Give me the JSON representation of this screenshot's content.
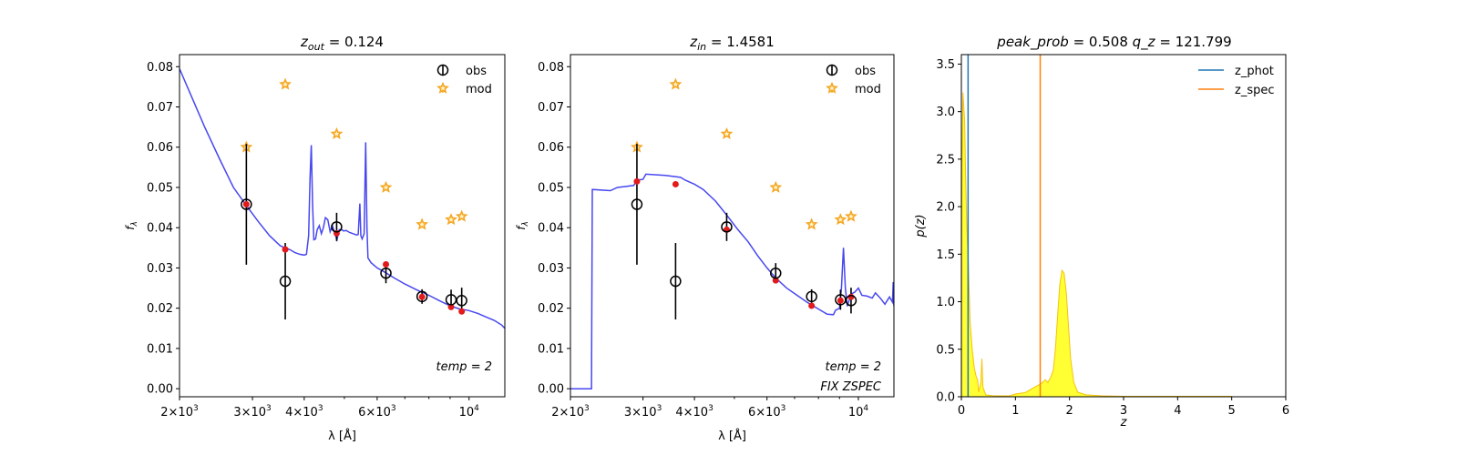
{
  "chart_data": [
    {
      "type": "line",
      "title": "z_out = 0.124",
      "title_parts": {
        "base": "z",
        "sub": "out",
        "rest": " = 0.124"
      },
      "xlabel": "λ [Å]",
      "ylabel": "f_λ",
      "xscale": "log",
      "xlim": [
        2000,
        12200
      ],
      "ylim": [
        -0.002,
        0.083
      ],
      "xticks": [
        {
          "v": 2000,
          "m": "2",
          "e": "3"
        },
        {
          "v": 3000,
          "m": "3",
          "e": "3"
        },
        {
          "v": 4000,
          "m": "4",
          "e": "3"
        },
        {
          "v": 6000,
          "m": "6",
          "e": "3"
        },
        {
          "v": 10000,
          "m": "",
          "e": "4"
        }
      ],
      "yticks": [
        "0.00",
        "0.01",
        "0.02",
        "0.03",
        "0.04",
        "0.05",
        "0.06",
        "0.07",
        "0.08"
      ],
      "legend": [
        "obs",
        "mod"
      ],
      "legend_position": "upper right",
      "annotations": [
        "temp = 2"
      ],
      "series": [
        {
          "name": "model",
          "color": "#3333ee",
          "points": [
            [
              2000,
              0.0795
            ],
            [
              2150,
              0.072
            ],
            [
              2300,
              0.065
            ],
            [
              2500,
              0.057
            ],
            [
              2700,
              0.05
            ],
            [
              2900,
              0.0455
            ],
            [
              3100,
              0.0415
            ],
            [
              3300,
              0.038
            ],
            [
              3500,
              0.0355
            ],
            [
              3700,
              0.0345
            ],
            [
              3800,
              0.0338
            ],
            [
              3900,
              0.0334
            ],
            [
              4000,
              0.0332
            ],
            [
              4050,
              0.0334
            ],
            [
              4100,
              0.038
            ],
            [
              4130,
              0.052
            ],
            [
              4160,
              0.0605
            ],
            [
              4190,
              0.046
            ],
            [
              4220,
              0.037
            ],
            [
              4260,
              0.0372
            ],
            [
              4300,
              0.0395
            ],
            [
              4350,
              0.0405
            ],
            [
              4400,
              0.0385
            ],
            [
              4450,
              0.04
            ],
            [
              4500,
              0.0425
            ],
            [
              4560,
              0.042
            ],
            [
              4620,
              0.039
            ],
            [
              4680,
              0.0405
            ],
            [
              4740,
              0.0385
            ],
            [
              4800,
              0.037
            ],
            [
              4860,
              0.0395
            ],
            [
              4920,
              0.0395
            ],
            [
              4980,
              0.0392
            ],
            [
              5050,
              0.0393
            ],
            [
              5150,
              0.0388
            ],
            [
              5250,
              0.0385
            ],
            [
              5350,
              0.0382
            ],
            [
              5400,
              0.0383
            ],
            [
              5450,
              0.046
            ],
            [
              5480,
              0.038
            ],
            [
              5520,
              0.0372
            ],
            [
              5580,
              0.0385
            ],
            [
              5630,
              0.0612
            ],
            [
              5670,
              0.04
            ],
            [
              5700,
              0.0325
            ],
            [
              5800,
              0.0313
            ],
            [
              6000,
              0.03
            ],
            [
              6300,
              0.0288
            ],
            [
              6600,
              0.0275
            ],
            [
              7000,
              0.026
            ],
            [
              7500,
              0.0245
            ],
            [
              8000,
              0.0232
            ],
            [
              8500,
              0.0218
            ],
            [
              9000,
              0.0206
            ],
            [
              9500,
              0.0198
            ],
            [
              10000,
              0.0194
            ],
            [
              10500,
              0.0187
            ],
            [
              11000,
              0.0178
            ],
            [
              11500,
              0.017
            ],
            [
              12000,
              0.0158
            ],
            [
              12200,
              0.015
            ]
          ]
        }
      ],
      "obs": [
        [
          2900,
          0.0458,
          0.015
        ],
        [
          3600,
          0.0267,
          0.0095
        ],
        [
          4790,
          0.0402,
          0.0035
        ],
        [
          6300,
          0.0287,
          0.0025
        ],
        [
          7700,
          0.0229,
          0.0018
        ],
        [
          9050,
          0.0221,
          0.0025
        ],
        [
          9600,
          0.0219,
          0.0032
        ]
      ],
      "mod_red": [
        [
          2900,
          0.0458
        ],
        [
          3600,
          0.0346
        ],
        [
          4790,
          0.0386
        ],
        [
          6300,
          0.0309
        ],
        [
          7700,
          0.0228
        ],
        [
          9050,
          0.0203
        ],
        [
          9600,
          0.0192
        ]
      ],
      "mod_stars": [
        [
          2900,
          0.06
        ],
        [
          3600,
          0.0756
        ],
        [
          4790,
          0.0633
        ],
        [
          6300,
          0.05
        ],
        [
          7700,
          0.0408
        ],
        [
          9050,
          0.042
        ],
        [
          9600,
          0.0428
        ]
      ]
    },
    {
      "type": "line",
      "title": "z_in = 1.4581",
      "title_parts": {
        "base": "z",
        "sub": "in",
        "rest": " = 1.4581"
      },
      "xlabel": "λ [Å]",
      "ylabel": "f_λ",
      "xscale": "log",
      "xlim": [
        2000,
        12200
      ],
      "ylim": [
        -0.002,
        0.083
      ],
      "xticks": [
        {
          "v": 2000,
          "m": "2",
          "e": "3"
        },
        {
          "v": 3000,
          "m": "3",
          "e": "3"
        },
        {
          "v": 4000,
          "m": "4",
          "e": "3"
        },
        {
          "v": 6000,
          "m": "6",
          "e": "3"
        },
        {
          "v": 10000,
          "m": "",
          "e": "4"
        }
      ],
      "yticks": [
        "0.00",
        "0.01",
        "0.02",
        "0.03",
        "0.04",
        "0.05",
        "0.06",
        "0.07",
        "0.08"
      ],
      "legend": [
        "obs",
        "mod"
      ],
      "legend_position": "upper right",
      "annotations": [
        "temp = 2",
        "FIX ZSPEC"
      ],
      "series": [
        {
          "name": "model",
          "color": "#3333ee",
          "points": [
            [
              2000,
              0.0
            ],
            [
              2250,
              0.0
            ],
            [
              2260,
              0.0495
            ],
            [
              2500,
              0.0492
            ],
            [
              2600,
              0.05
            ],
            [
              2700,
              0.0502
            ],
            [
              2850,
              0.0505
            ],
            [
              2900,
              0.0518
            ],
            [
              3000,
              0.052
            ],
            [
              3050,
              0.0533
            ],
            [
              3400,
              0.053
            ],
            [
              3700,
              0.0525
            ],
            [
              3800,
              0.0518
            ],
            [
              4000,
              0.0508
            ],
            [
              4200,
              0.0495
            ],
            [
              4500,
              0.0466
            ],
            [
              4800,
              0.043
            ],
            [
              5100,
              0.0395
            ],
            [
              5400,
              0.0365
            ],
            [
              5700,
              0.033
            ],
            [
              6000,
              0.03
            ],
            [
              6300,
              0.0275
            ],
            [
              6700,
              0.025
            ],
            [
              7100,
              0.0232
            ],
            [
              7500,
              0.0215
            ],
            [
              8000,
              0.0198
            ],
            [
              8400,
              0.0185
            ],
            [
              8700,
              0.0184
            ],
            [
              8800,
              0.0195
            ],
            [
              9000,
              0.02
            ],
            [
              9100,
              0.025
            ],
            [
              9200,
              0.035
            ],
            [
              9300,
              0.025
            ],
            [
              9400,
              0.0205
            ],
            [
              9600,
              0.0235
            ],
            [
              9800,
              0.024
            ],
            [
              10000,
              0.025
            ],
            [
              10200,
              0.0232
            ],
            [
              10500,
              0.023
            ],
            [
              10800,
              0.0225
            ],
            [
              11000,
              0.0238
            ],
            [
              11300,
              0.0225
            ],
            [
              11600,
              0.021
            ],
            [
              11900,
              0.0228
            ],
            [
              12100,
              0.0215
            ],
            [
              12150,
              0.0265
            ],
            [
              12200,
              0.0205
            ]
          ]
        }
      ],
      "obs": [
        [
          2900,
          0.0458,
          0.015
        ],
        [
          3600,
          0.0267,
          0.0095
        ],
        [
          4790,
          0.0402,
          0.0035
        ],
        [
          6300,
          0.0287,
          0.0025
        ],
        [
          7700,
          0.0229,
          0.0018
        ],
        [
          9050,
          0.0221,
          0.0025
        ],
        [
          9600,
          0.0219,
          0.0032
        ]
      ],
      "mod_red": [
        [
          2900,
          0.0515
        ],
        [
          3600,
          0.0508
        ],
        [
          4790,
          0.0395
        ],
        [
          6300,
          0.0269
        ],
        [
          7700,
          0.0206
        ],
        [
          9050,
          0.0219
        ],
        [
          9600,
          0.0228
        ]
      ],
      "mod_stars": [
        [
          2900,
          0.06
        ],
        [
          3600,
          0.0756
        ],
        [
          4790,
          0.0633
        ],
        [
          6300,
          0.05
        ],
        [
          7700,
          0.0408
        ],
        [
          9050,
          0.042
        ],
        [
          9600,
          0.0428
        ]
      ]
    },
    {
      "type": "area",
      "title": "peak_prob = 0.508     q_z = 121.799",
      "xlabel": "z",
      "ylabel": "p(z)",
      "xlim": [
        0,
        6
      ],
      "ylim": [
        0,
        3.6
      ],
      "xticks": [
        "0",
        "1",
        "2",
        "3",
        "4",
        "5",
        "6"
      ],
      "yticks": [
        "0.0",
        "0.5",
        "1.0",
        "1.5",
        "2.0",
        "2.5",
        "3.0",
        "3.5"
      ],
      "legend": [
        "z_phot",
        "z_spec"
      ],
      "legend_position": "upper right",
      "z_phot": 0.124,
      "z_spec": 1.4581,
      "colors": {
        "z_phot": "#1f77b4",
        "z_spec": "#ff7f0e",
        "fill": "#ffff33",
        "edge": "#f4c20d"
      },
      "pz": [
        [
          0,
          0
        ],
        [
          0.01,
          2.4
        ],
        [
          0.03,
          3.2
        ],
        [
          0.06,
          2.9
        ],
        [
          0.08,
          2.3
        ],
        [
          0.1,
          1.8
        ],
        [
          0.13,
          1.4
        ],
        [
          0.16,
          0.8
        ],
        [
          0.2,
          0.5
        ],
        [
          0.24,
          0.3
        ],
        [
          0.28,
          0.2
        ],
        [
          0.3,
          0.18
        ],
        [
          0.32,
          0.05
        ],
        [
          0.36,
          0.15
        ],
        [
          0.38,
          0.4
        ],
        [
          0.4,
          0.1
        ],
        [
          0.45,
          0.02
        ],
        [
          0.6,
          0.01
        ],
        [
          0.9,
          0.01
        ],
        [
          1.0,
          0.03
        ],
        [
          1.15,
          0.04
        ],
        [
          1.2,
          0.05
        ],
        [
          1.35,
          0.1
        ],
        [
          1.45,
          0.13
        ],
        [
          1.5,
          0.15
        ],
        [
          1.55,
          0.18
        ],
        [
          1.6,
          0.15
        ],
        [
          1.65,
          0.2
        ],
        [
          1.7,
          0.28
        ],
        [
          1.74,
          0.5
        ],
        [
          1.78,
          0.85
        ],
        [
          1.82,
          1.18
        ],
        [
          1.86,
          1.33
        ],
        [
          1.9,
          1.3
        ],
        [
          1.94,
          1.1
        ],
        [
          1.98,
          0.75
        ],
        [
          2.02,
          0.4
        ],
        [
          2.08,
          0.15
        ],
        [
          2.15,
          0.05
        ],
        [
          2.3,
          0.02
        ],
        [
          2.6,
          0.01
        ],
        [
          3.0,
          0.005
        ],
        [
          4.0,
          0.005
        ],
        [
          5.0,
          0.005
        ],
        [
          5.01,
          0
        ]
      ]
    }
  ]
}
